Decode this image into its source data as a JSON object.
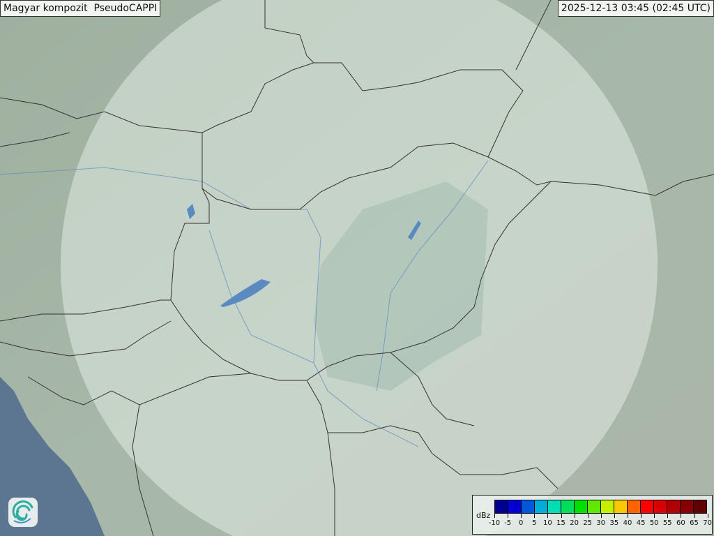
{
  "title": "Magyar kompozit  PseudoCAPPI",
  "timestamp": "2025-12-13 03:45 (02:45 UTC)",
  "legend": {
    "unit": "dBz",
    "ticks": [
      "-10",
      "-5",
      "0",
      "5",
      "10",
      "15",
      "20",
      "25",
      "30",
      "35",
      "40",
      "45",
      "50",
      "55",
      "60",
      "65",
      "70"
    ],
    "colors": [
      "#000090",
      "#0000d0",
      "#0058d8",
      "#00acd8",
      "#00dcb4",
      "#00dc5c",
      "#00e000",
      "#60e800",
      "#c4f000",
      "#f8c800",
      "#ff6400",
      "#ff0000",
      "#d80000",
      "#b00000",
      "#880000",
      "#600000"
    ]
  },
  "map": {
    "land_color": "#a3b3a4",
    "sea_color": "#5c7591",
    "radar_coverage_color": "#e6efea",
    "water_color": "#5a8ac0",
    "border_color": "#333333"
  },
  "logo": "omsz-swirl-logo"
}
